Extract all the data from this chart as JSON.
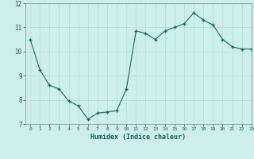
{
  "x": [
    0,
    1,
    2,
    3,
    4,
    5,
    6,
    7,
    8,
    9,
    10,
    11,
    12,
    13,
    14,
    15,
    16,
    17,
    18,
    19,
    20,
    21,
    22,
    23
  ],
  "y": [
    10.5,
    9.25,
    8.6,
    8.45,
    7.95,
    7.75,
    7.2,
    7.45,
    7.5,
    7.55,
    8.45,
    10.85,
    10.75,
    10.5,
    10.85,
    11.0,
    11.15,
    11.6,
    11.3,
    11.1,
    10.5,
    10.2,
    10.1,
    10.1
  ],
  "xlabel": "Humidex (Indice chaleur)",
  "ylim": [
    7,
    12
  ],
  "xlim": [
    -0.5,
    23
  ],
  "yticks": [
    7,
    8,
    9,
    10,
    11,
    12
  ],
  "xticks": [
    0,
    1,
    2,
    3,
    4,
    5,
    6,
    7,
    8,
    9,
    10,
    11,
    12,
    13,
    14,
    15,
    16,
    17,
    18,
    19,
    20,
    21,
    22,
    23
  ],
  "line_color": "#1a6b5a",
  "marker_color": "#1a6b5a",
  "bg_color": "#cceeed",
  "grid_color": "#b8dada",
  "tick_color": "#1a5a5a",
  "label_color": "#1a5a5a"
}
